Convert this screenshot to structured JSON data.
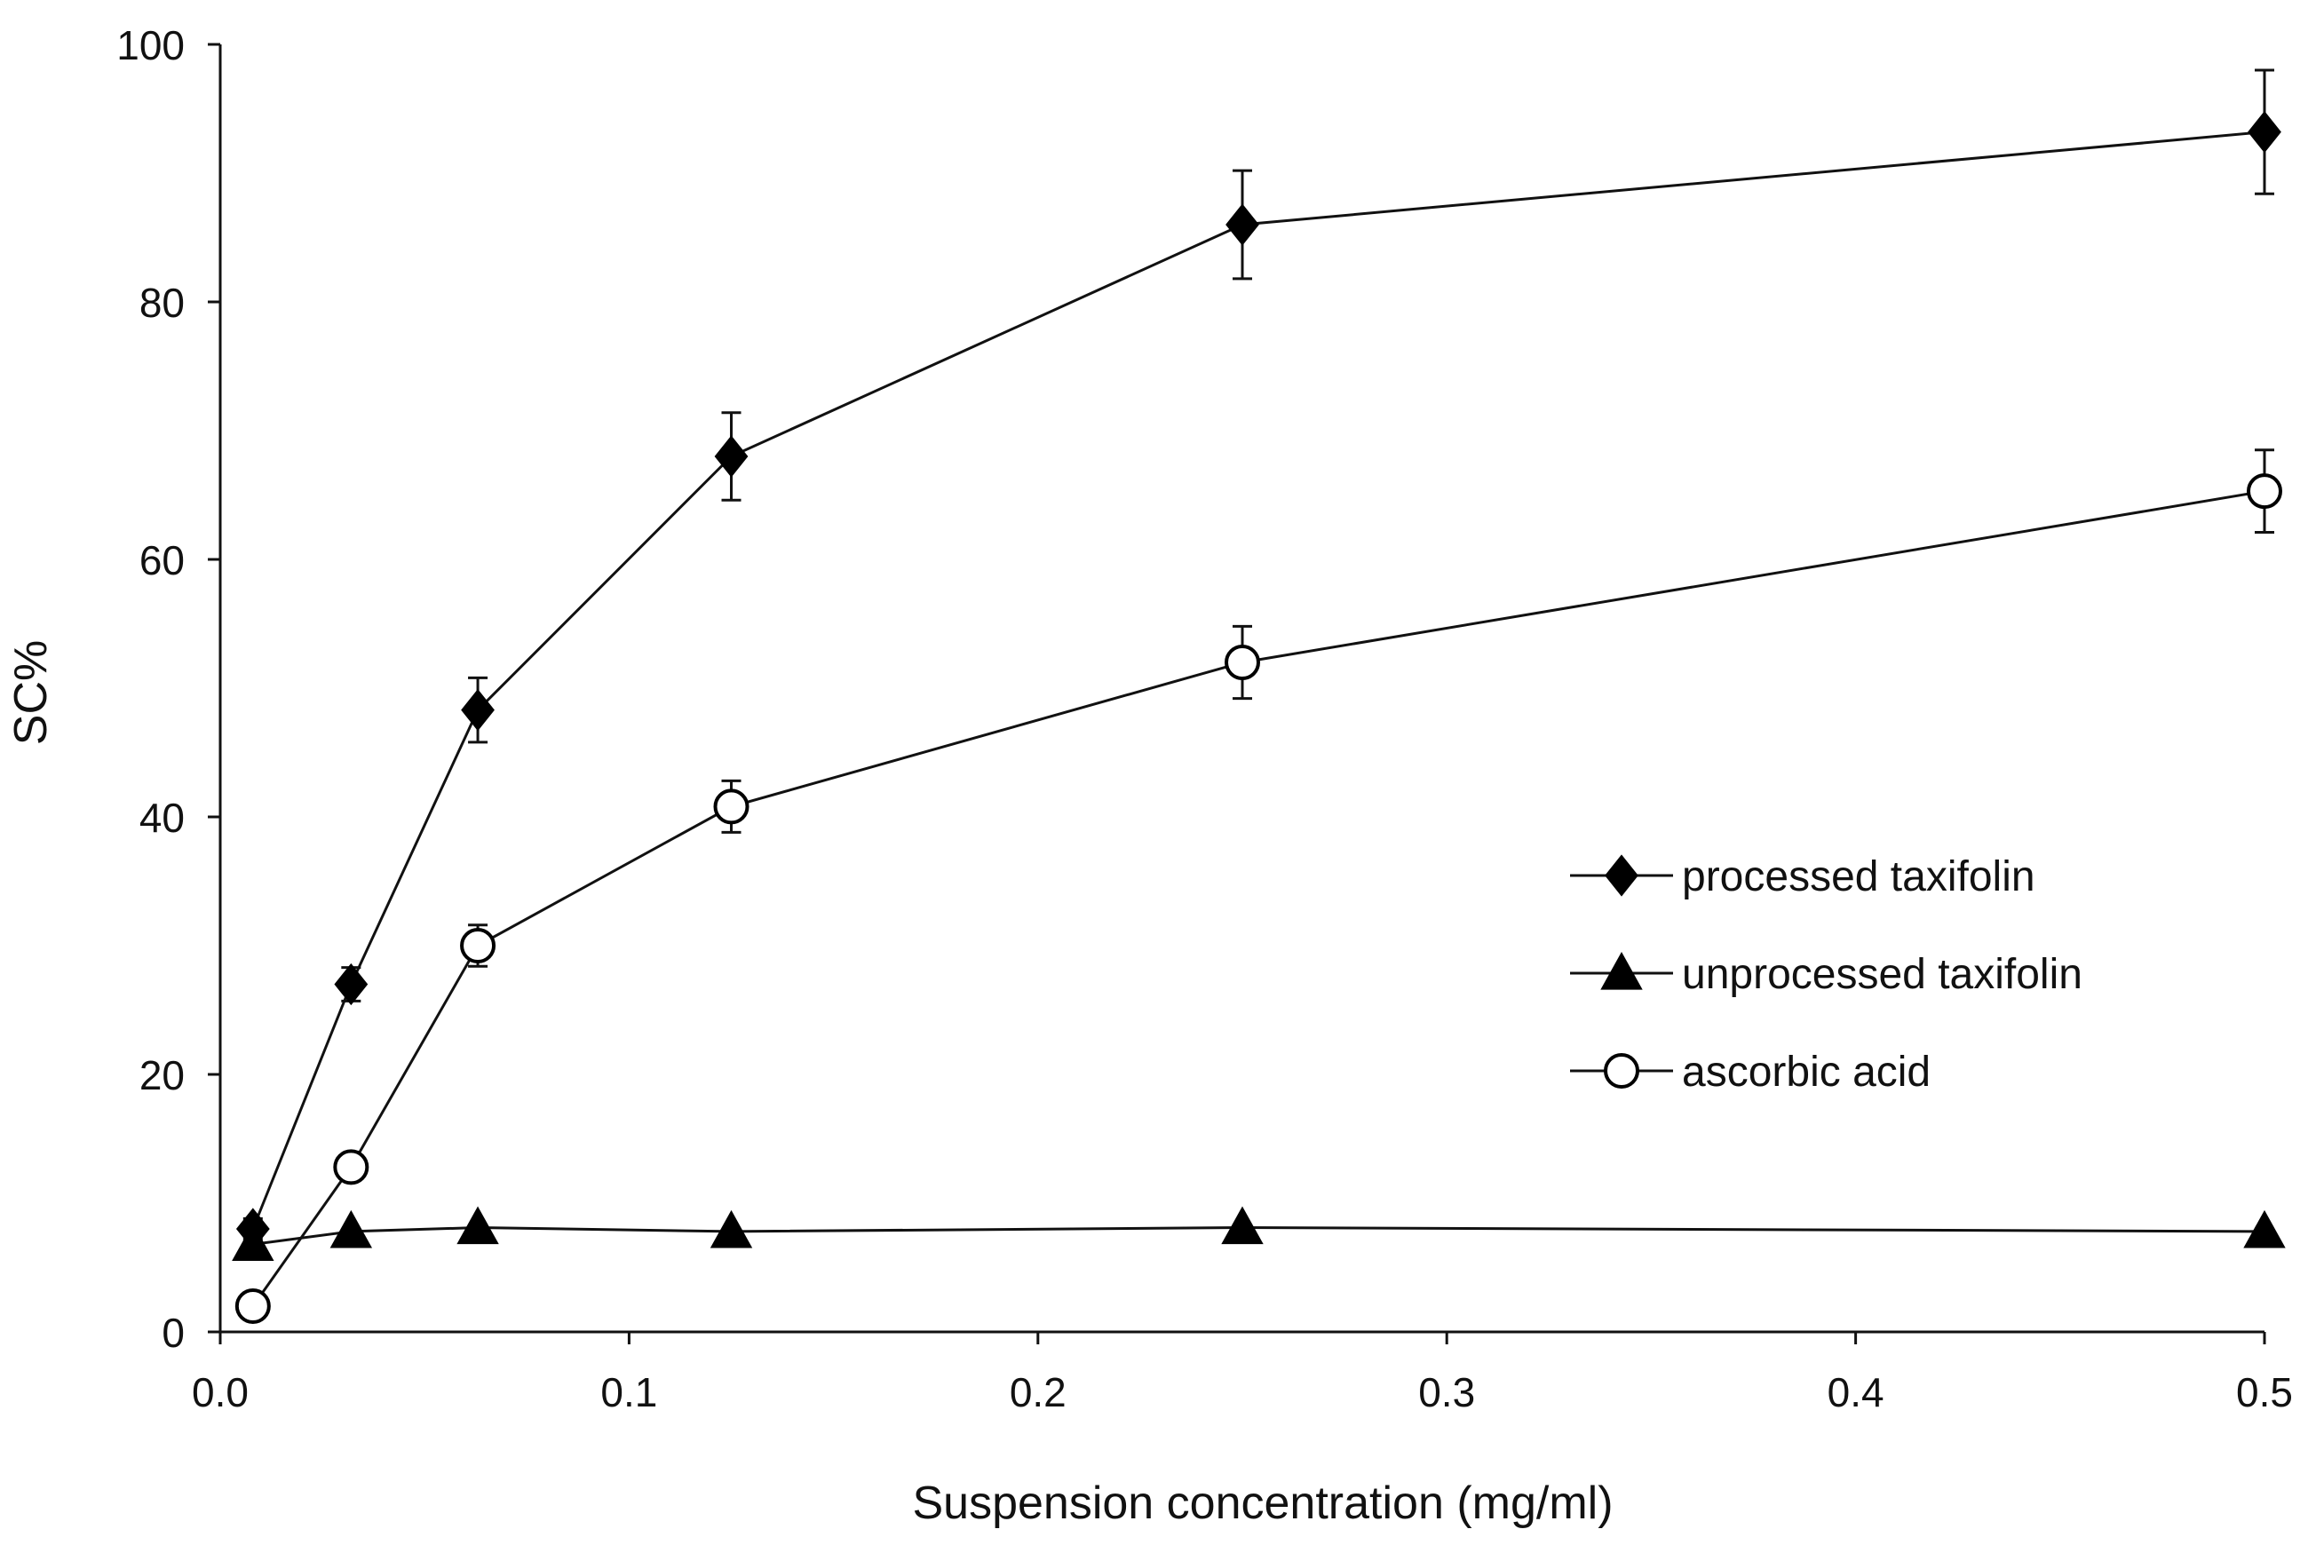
{
  "chart_data": {
    "type": "line",
    "title": "",
    "xlabel": "Suspension concentration (mg/ml)",
    "ylabel": "SC%",
    "xlim": [
      0,
      0.5
    ],
    "ylim": [
      0,
      100
    ],
    "x_ticks": [
      0.0,
      0.1,
      0.2,
      0.3,
      0.4,
      0.5
    ],
    "x_tick_labels": [
      "0.0",
      "0.1",
      "0.2",
      "0.3",
      "0.4",
      "0.5"
    ],
    "y_ticks": [
      0,
      20,
      40,
      60,
      80,
      100
    ],
    "y_tick_labels": [
      "0",
      "20",
      "40",
      "60",
      "80",
      "100"
    ],
    "grid": false,
    "legend_position": "middle-right",
    "series": [
      {
        "name": "processed taxifolin",
        "marker": "diamond-filled",
        "x": [
          0.008,
          0.032,
          0.063,
          0.125,
          0.25,
          0.5
        ],
        "values": [
          8,
          27,
          48.3,
          68,
          86,
          93.2
        ],
        "errors": [
          0.8,
          1.3,
          2.5,
          3.4,
          4.2,
          4.8
        ]
      },
      {
        "name": "unprocessed taxifolin",
        "marker": "triangle-filled",
        "x": [
          0.008,
          0.032,
          0.063,
          0.125,
          0.25,
          0.5
        ],
        "values": [
          6.8,
          7.8,
          8.1,
          7.8,
          8.1,
          7.8
        ],
        "errors": [
          0,
          0,
          0,
          0,
          0,
          0
        ]
      },
      {
        "name": "ascorbic acid",
        "marker": "circle-open",
        "x": [
          0.008,
          0.032,
          0.063,
          0.125,
          0.25,
          0.5
        ],
        "values": [
          2,
          12.8,
          30,
          40.8,
          52,
          65.3
        ],
        "errors": [
          0,
          0.8,
          1.6,
          2,
          2.8,
          3.2
        ]
      }
    ]
  }
}
